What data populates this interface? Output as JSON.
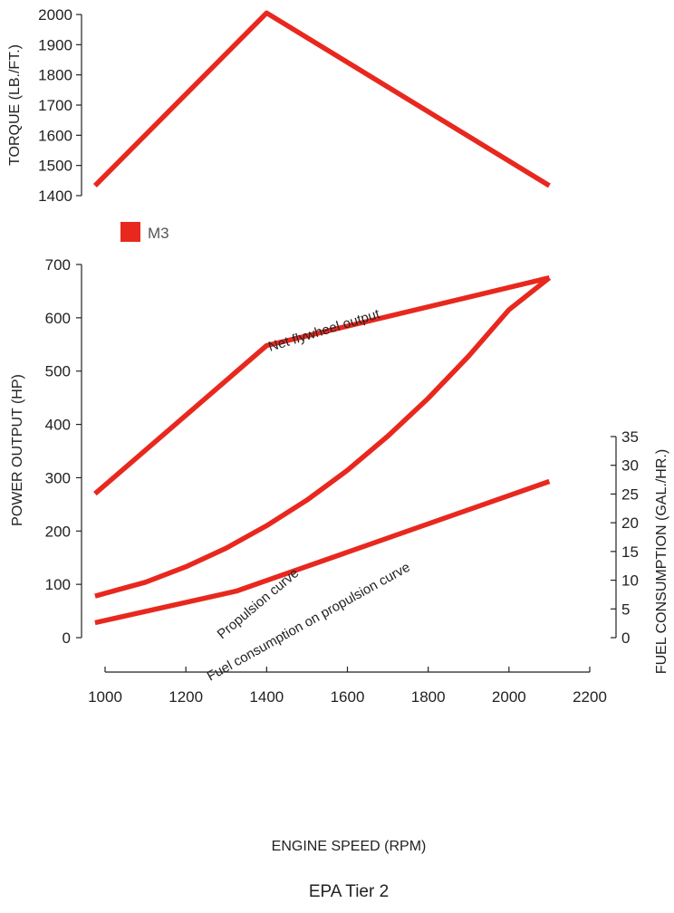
{
  "caption": "EPA Tier 2",
  "legend": {
    "label": "M3",
    "color": "#e8281e"
  },
  "colors": {
    "series": "#e8281e",
    "axis": "#222222"
  },
  "chart_data": [
    {
      "type": "line",
      "ylabel": "TORQUE (LB./FT.)",
      "xlim": [
        1000,
        2200
      ],
      "ylim": [
        1400,
        2000
      ],
      "yticks": [
        1400,
        1500,
        1600,
        1700,
        1800,
        1900,
        2000
      ],
      "series": [
        {
          "name": "M3",
          "x": [
            975,
            1400,
            2100
          ],
          "values": [
            1433,
            2005,
            1433
          ]
        }
      ]
    },
    {
      "type": "line",
      "xlabel": "ENGINE SPEED (RPM)",
      "ylabel": "POWER OUTPUT (HP)",
      "y2label": "FUEL CONSUMPTION (GAL./HR.)",
      "xlim": [
        1000,
        2200
      ],
      "ylim": [
        0,
        700
      ],
      "y2lim": [
        0,
        35
      ],
      "xticks": [
        1000,
        1200,
        1400,
        1600,
        1800,
        2000,
        2200
      ],
      "yticks": [
        0,
        100,
        200,
        300,
        400,
        500,
        600,
        700
      ],
      "y2ticks": [
        0,
        5,
        10,
        15,
        20,
        25,
        30,
        35
      ],
      "series": [
        {
          "label": "Net flywheel output",
          "axis": "left",
          "x": [
            975,
            1400,
            2100
          ],
          "values": [
            270,
            548,
            675
          ]
        },
        {
          "label": "Propulsion curve",
          "axis": "left",
          "x": [
            975,
            1100,
            1200,
            1300,
            1400,
            1500,
            1600,
            1700,
            1800,
            1900,
            2000,
            2100
          ],
          "values": [
            78,
            104,
            133,
            168,
            210,
            258,
            314,
            378,
            449,
            528,
            615,
            675
          ]
        },
        {
          "label": "Fuel consumption on propulsion curve",
          "axis": "right",
          "x": [
            975,
            1325,
            2100
          ],
          "values": [
            2.6,
            8.1,
            27.2
          ]
        }
      ],
      "annotations": [
        "Net flywheel output",
        "Propulsion curve",
        "Fuel consumption on propulsion curve"
      ]
    }
  ]
}
